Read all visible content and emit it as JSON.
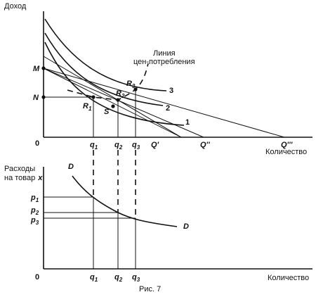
{
  "top_panel": {
    "y_axis_label": "Доход",
    "x_axis_label": "Количество",
    "origin": "0",
    "income_levels": [
      "M",
      "N"
    ],
    "quantity_ticks": [
      "Q'",
      "Q''",
      "Q'''"
    ],
    "q_ticks": [
      {
        "q": "q",
        "sub": "1"
      },
      {
        "q": "q",
        "sub": "2"
      },
      {
        "q": "q",
        "sub": "3"
      }
    ],
    "points": [
      {
        "r": "R",
        "sub": "1"
      },
      {
        "r": "R",
        "sub": "2"
      },
      {
        "r": "R",
        "sub": "3"
      }
    ],
    "point_s": "S",
    "indifference_curves": [
      "1",
      "2",
      "3"
    ],
    "pcc_label_line1": "Линия",
    "pcc_label_line2": "цен-потребления"
  },
  "bottom_panel": {
    "y_axis_label_line1": "Расходы",
    "y_axis_label_line2": "на товар",
    "y_axis_label_var": "x",
    "x_axis_label": "Количество",
    "origin": "0",
    "demand_label": "D",
    "p_ticks": [
      {
        "p": "p",
        "sub": "1"
      },
      {
        "p": "p",
        "sub": "2"
      },
      {
        "p": "p",
        "sub": "3"
      }
    ],
    "q_ticks": [
      {
        "q": "q",
        "sub": "1"
      },
      {
        "q": "q",
        "sub": "2"
      },
      {
        "q": "q",
        "sub": "3"
      }
    ]
  },
  "caption": "Рис. 7"
}
